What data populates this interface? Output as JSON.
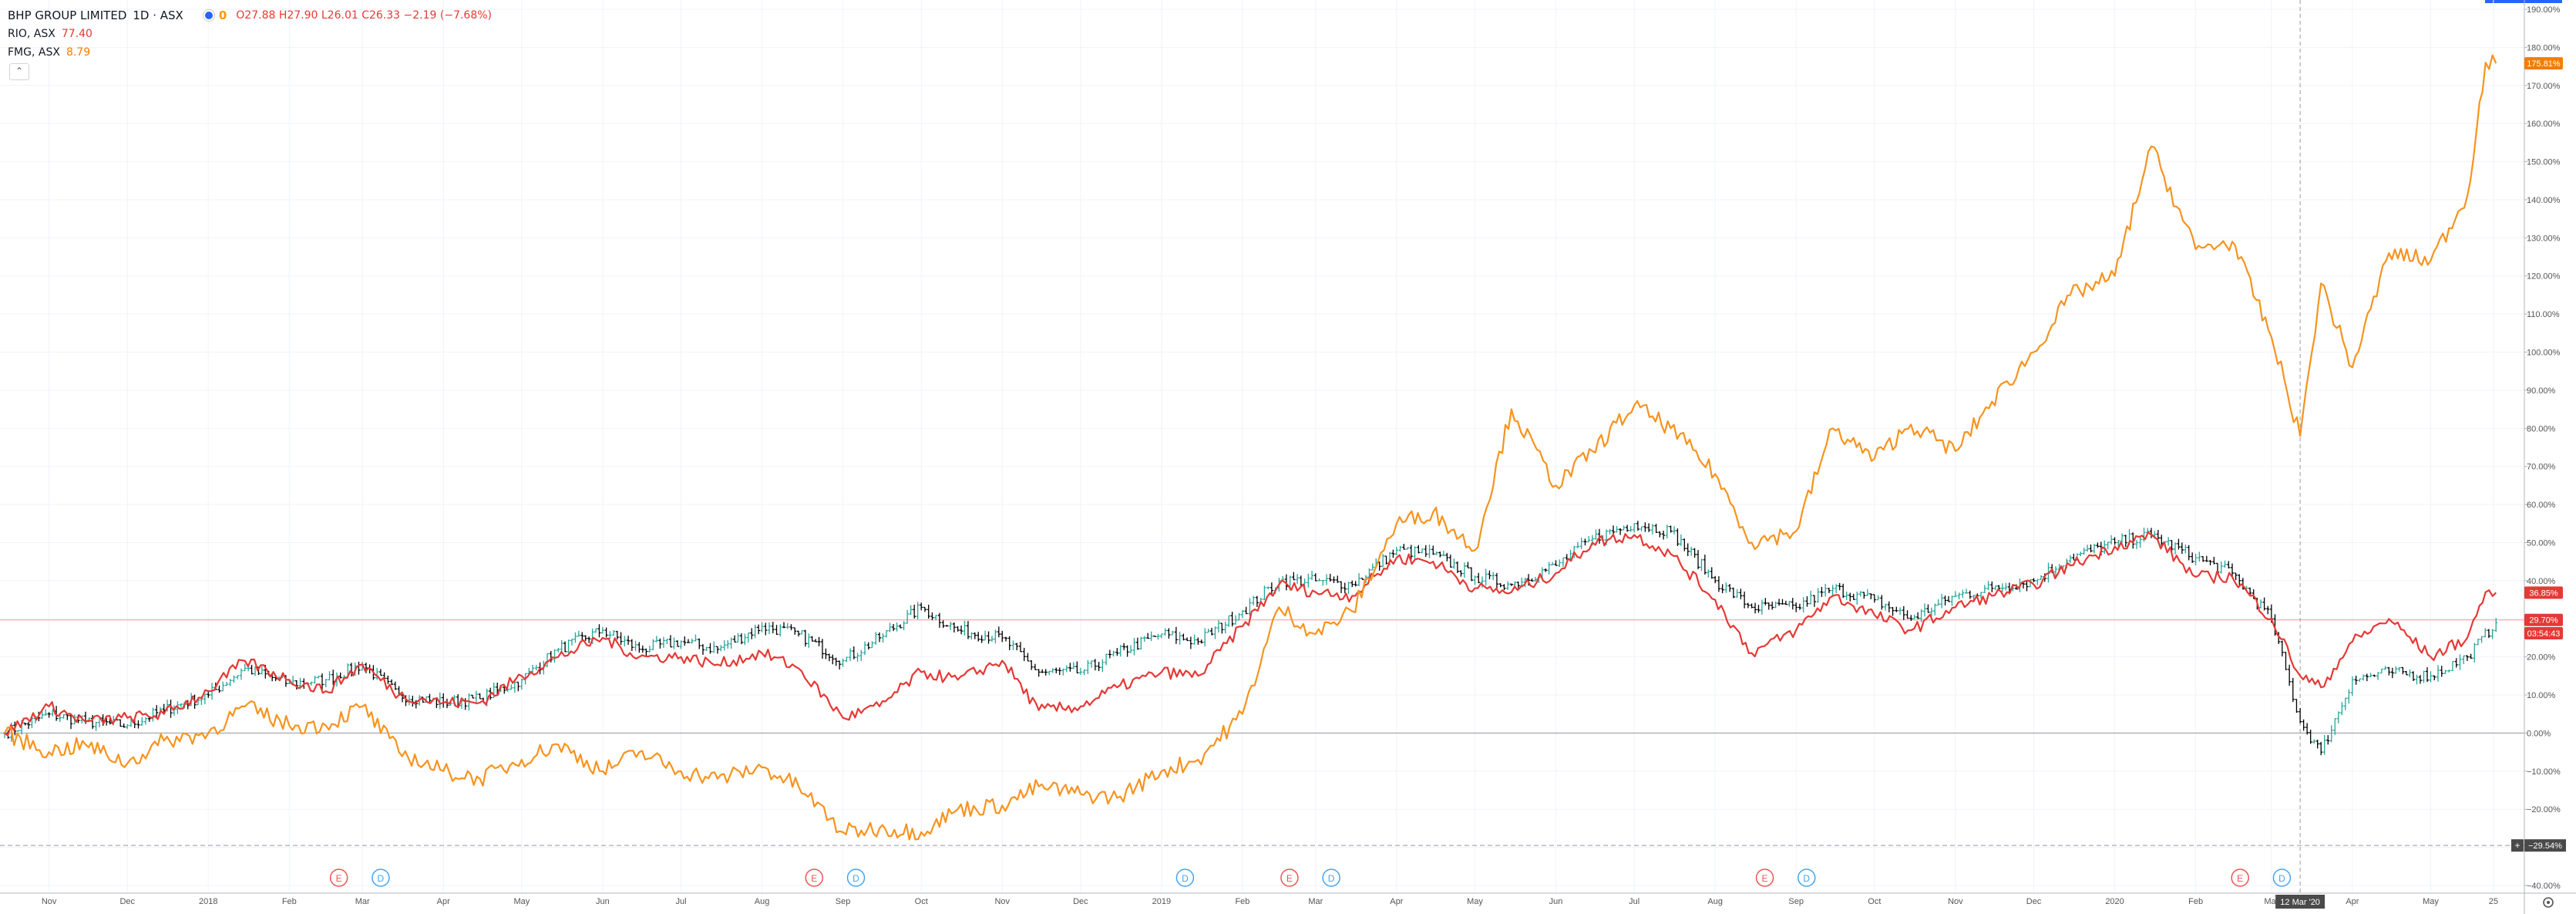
{
  "legend": {
    "main_symbol": "BHP GROUP LIMITED",
    "interval_exchange": "1D · ASX",
    "status_flag": "0",
    "ohlc": "O27.88 H27.90 L26.01 C26.33 −2.19 (−7.68%)",
    "compare": [
      {
        "name": "RIO, ASX",
        "value": "77.40",
        "color": "#e53935"
      },
      {
        "name": "FMG, ASX",
        "value": "8.79",
        "color": "#f57c00"
      }
    ],
    "collapse_glyph": "⌃"
  },
  "colors": {
    "bhp_up": "#26a69a",
    "bhp_down": "#000000",
    "rio_line": "#e53935",
    "fmg_line": "#f7931e",
    "grid": "#f0f3fa",
    "axis_text": "#555555"
  },
  "chart_data": {
    "type": "line",
    "percent_scale": true,
    "y_axis": {
      "min": -40,
      "max": 190,
      "ticks": [
        "190.00%",
        "180.00%",
        "170.00%",
        "160.00%",
        "150.00%",
        "140.00%",
        "130.00%",
        "120.00%",
        "110.00%",
        "100.00%",
        "90.00%",
        "80.00%",
        "70.00%",
        "60.00%",
        "50.00%",
        "40.00%",
        "30.00%",
        "20.00%",
        "10.00%",
        "0.00%",
        "−10.00%",
        "−20.00%",
        "−30.00%",
        "−40.00%"
      ]
    },
    "x_axis": {
      "range": [
        "2017-10-15",
        "2020-05-28"
      ],
      "ticks": [
        {
          "label": "Nov",
          "date": "2017-11-01"
        },
        {
          "label": "Dec",
          "date": "2017-12-01"
        },
        {
          "label": "2018",
          "date": "2018-01-01"
        },
        {
          "label": "Feb",
          "date": "2018-02-01"
        },
        {
          "label": "Mar",
          "date": "2018-03-01"
        },
        {
          "label": "Apr",
          "date": "2018-04-01"
        },
        {
          "label": "May",
          "date": "2018-05-01"
        },
        {
          "label": "Jun",
          "date": "2018-06-01"
        },
        {
          "label": "Jul",
          "date": "2018-07-01"
        },
        {
          "label": "Aug",
          "date": "2018-08-01"
        },
        {
          "label": "Sep",
          "date": "2018-09-01"
        },
        {
          "label": "Oct",
          "date": "2018-10-01"
        },
        {
          "label": "Nov",
          "date": "2018-11-01"
        },
        {
          "label": "Dec",
          "date": "2018-12-01"
        },
        {
          "label": "2019",
          "date": "2019-01-01"
        },
        {
          "label": "Feb",
          "date": "2019-02-01"
        },
        {
          "label": "Mar",
          "date": "2019-03-01"
        },
        {
          "label": "Apr",
          "date": "2019-04-01"
        },
        {
          "label": "May",
          "date": "2019-05-01"
        },
        {
          "label": "Jun",
          "date": "2019-06-01"
        },
        {
          "label": "Jul",
          "date": "2019-07-01"
        },
        {
          "label": "Aug",
          "date": "2019-08-01"
        },
        {
          "label": "Sep",
          "date": "2019-09-01"
        },
        {
          "label": "Oct",
          "date": "2019-10-01"
        },
        {
          "label": "Nov",
          "date": "2019-11-01"
        },
        {
          "label": "Dec",
          "date": "2019-12-01"
        },
        {
          "label": "2020",
          "date": "2020-01-01"
        },
        {
          "label": "Feb",
          "date": "2020-02-01"
        },
        {
          "label": "Mar",
          "date": "2020-03-01"
        },
        {
          "label": "Apr",
          "date": "2020-04-01"
        },
        {
          "label": "May",
          "date": "2020-05-01"
        },
        {
          "label": "25",
          "date": "2020-05-25"
        }
      ]
    },
    "crosshair": {
      "date": "2020-03-12",
      "label": "12 Mar '20"
    },
    "price_line": {
      "value": 29.7,
      "color": "#ef9a9a"
    },
    "low_line": {
      "value": -29.5,
      "label": "−29.54%"
    },
    "badges": [
      {
        "text": "175.81%",
        "value": 175.81,
        "color": "#f57c00"
      },
      {
        "text": "36.85%",
        "value": 36.85,
        "color": "#e53935"
      },
      {
        "text": "29.70%",
        "value": 29.7,
        "color": "#e53935"
      },
      {
        "text": "03:54:43",
        "value": 26.2,
        "color": "#e53935"
      }
    ],
    "events": [
      {
        "type": "E",
        "date": "2018-02-20"
      },
      {
        "type": "D",
        "date": "2018-03-08"
      },
      {
        "type": "E",
        "date": "2018-08-21"
      },
      {
        "type": "D",
        "date": "2018-09-06"
      },
      {
        "type": "D",
        "date": "2019-01-10"
      },
      {
        "type": "E",
        "date": "2019-02-19"
      },
      {
        "type": "D",
        "date": "2019-03-07"
      },
      {
        "type": "E",
        "date": "2019-08-20"
      },
      {
        "type": "D",
        "date": "2019-09-05"
      },
      {
        "type": "E",
        "date": "2020-02-18"
      },
      {
        "type": "D",
        "date": "2020-03-05"
      }
    ],
    "series": [
      {
        "name": "BHP GROUP LIMITED",
        "kind": "bars",
        "points": [
          [
            "2017-10-15",
            0
          ],
          [
            "2017-11-01",
            5
          ],
          [
            "2017-11-15",
            3
          ],
          [
            "2017-12-01",
            2
          ],
          [
            "2017-12-15",
            6
          ],
          [
            "2018-01-01",
            10
          ],
          [
            "2018-01-15",
            17
          ],
          [
            "2018-02-01",
            13
          ],
          [
            "2018-02-15",
            14
          ],
          [
            "2018-03-01",
            18
          ],
          [
            "2018-03-15",
            10
          ],
          [
            "2018-04-01",
            8
          ],
          [
            "2018-04-15",
            9
          ],
          [
            "2018-05-01",
            14
          ],
          [
            "2018-05-15",
            22
          ],
          [
            "2018-06-01",
            27
          ],
          [
            "2018-06-15",
            22
          ],
          [
            "2018-07-01",
            24
          ],
          [
            "2018-07-15",
            22
          ],
          [
            "2018-08-01",
            28
          ],
          [
            "2018-08-15",
            26
          ],
          [
            "2018-09-01",
            19
          ],
          [
            "2018-09-15",
            25
          ],
          [
            "2018-10-01",
            33
          ],
          [
            "2018-10-15",
            27
          ],
          [
            "2018-11-01",
            25
          ],
          [
            "2018-11-15",
            16
          ],
          [
            "2018-12-01",
            16
          ],
          [
            "2018-12-15",
            21
          ],
          [
            "2019-01-01",
            26
          ],
          [
            "2019-01-15",
            24
          ],
          [
            "2019-02-01",
            32
          ],
          [
            "2019-02-15",
            40
          ],
          [
            "2019-03-01",
            40
          ],
          [
            "2019-03-15",
            39
          ],
          [
            "2019-04-01",
            48
          ],
          [
            "2019-04-15",
            47
          ],
          [
            "2019-05-01",
            41
          ],
          [
            "2019-05-15",
            39
          ],
          [
            "2019-06-01",
            44
          ],
          [
            "2019-06-15",
            51
          ],
          [
            "2019-07-01",
            55
          ],
          [
            "2019-07-15",
            53
          ],
          [
            "2019-08-01",
            40
          ],
          [
            "2019-08-15",
            33
          ],
          [
            "2019-09-01",
            33
          ],
          [
            "2019-09-15",
            38
          ],
          [
            "2019-10-01",
            35
          ],
          [
            "2019-10-15",
            30
          ],
          [
            "2019-11-01",
            36
          ],
          [
            "2019-11-15",
            38
          ],
          [
            "2019-12-01",
            40
          ],
          [
            "2019-12-15",
            46
          ],
          [
            "2020-01-01",
            50
          ],
          [
            "2020-01-15",
            52
          ],
          [
            "2020-02-01",
            46
          ],
          [
            "2020-02-15",
            42
          ],
          [
            "2020-03-01",
            30
          ],
          [
            "2020-03-12",
            3
          ],
          [
            "2020-03-20",
            -5
          ],
          [
            "2020-04-01",
            14
          ],
          [
            "2020-04-15",
            16
          ],
          [
            "2020-05-01",
            15
          ],
          [
            "2020-05-15",
            20
          ],
          [
            "2020-05-26",
            29
          ]
        ]
      },
      {
        "name": "RIO, ASX",
        "kind": "line",
        "points": [
          [
            "2017-10-15",
            0
          ],
          [
            "2017-11-01",
            7
          ],
          [
            "2017-11-15",
            3
          ],
          [
            "2017-12-01",
            4
          ],
          [
            "2017-12-15",
            5
          ],
          [
            "2018-01-01",
            11
          ],
          [
            "2018-01-15",
            19
          ],
          [
            "2018-02-01",
            14
          ],
          [
            "2018-02-15",
            11
          ],
          [
            "2018-03-01",
            18
          ],
          [
            "2018-03-15",
            10
          ],
          [
            "2018-04-01",
            8
          ],
          [
            "2018-04-15",
            8
          ],
          [
            "2018-05-01",
            15
          ],
          [
            "2018-05-15",
            20
          ],
          [
            "2018-06-01",
            25
          ],
          [
            "2018-06-15",
            20
          ],
          [
            "2018-07-01",
            20
          ],
          [
            "2018-07-15",
            18
          ],
          [
            "2018-08-01",
            21
          ],
          [
            "2018-08-15",
            17
          ],
          [
            "2018-09-01",
            4
          ],
          [
            "2018-09-15",
            7
          ],
          [
            "2018-10-01",
            16
          ],
          [
            "2018-10-15",
            14
          ],
          [
            "2018-11-01",
            19
          ],
          [
            "2018-11-15",
            6
          ],
          [
            "2018-12-01",
            7
          ],
          [
            "2018-12-15",
            12
          ],
          [
            "2019-01-01",
            16
          ],
          [
            "2019-01-15",
            15
          ],
          [
            "2019-02-01",
            28
          ],
          [
            "2019-02-15",
            39
          ],
          [
            "2019-03-01",
            37
          ],
          [
            "2019-03-15",
            36
          ],
          [
            "2019-04-01",
            46
          ],
          [
            "2019-04-15",
            45
          ],
          [
            "2019-05-01",
            38
          ],
          [
            "2019-05-15",
            37
          ],
          [
            "2019-06-01",
            42
          ],
          [
            "2019-06-15",
            50
          ],
          [
            "2019-07-01",
            52
          ],
          [
            "2019-07-15",
            47
          ],
          [
            "2019-08-01",
            35
          ],
          [
            "2019-08-15",
            21
          ],
          [
            "2019-09-01",
            27
          ],
          [
            "2019-09-15",
            36
          ],
          [
            "2019-10-01",
            31
          ],
          [
            "2019-10-15",
            27
          ],
          [
            "2019-11-01",
            33
          ],
          [
            "2019-11-15",
            36
          ],
          [
            "2019-12-01",
            39
          ],
          [
            "2019-12-15",
            44
          ],
          [
            "2020-01-01",
            49
          ],
          [
            "2020-01-15",
            52
          ],
          [
            "2020-02-01",
            41
          ],
          [
            "2020-02-15",
            41
          ],
          [
            "2020-03-01",
            30
          ],
          [
            "2020-03-12",
            15
          ],
          [
            "2020-03-20",
            12
          ],
          [
            "2020-04-01",
            24
          ],
          [
            "2020-04-15",
            30
          ],
          [
            "2020-05-01",
            20
          ],
          [
            "2020-05-15",
            25
          ],
          [
            "2020-05-22",
            37
          ],
          [
            "2020-05-26",
            36.85
          ]
        ]
      },
      {
        "name": "FMG, ASX",
        "kind": "line",
        "points": [
          [
            "2017-10-15",
            0
          ],
          [
            "2017-11-01",
            -5
          ],
          [
            "2017-11-15",
            -3
          ],
          [
            "2017-12-01",
            -8
          ],
          [
            "2017-12-15",
            -2
          ],
          [
            "2018-01-01",
            0
          ],
          [
            "2018-01-15",
            7
          ],
          [
            "2018-02-01",
            2
          ],
          [
            "2018-02-15",
            2
          ],
          [
            "2018-03-01",
            7
          ],
          [
            "2018-03-15",
            -5
          ],
          [
            "2018-04-01",
            -10
          ],
          [
            "2018-04-15",
            -12
          ],
          [
            "2018-05-01",
            -7
          ],
          [
            "2018-05-15",
            -3
          ],
          [
            "2018-06-01",
            -10
          ],
          [
            "2018-06-15",
            -5
          ],
          [
            "2018-07-01",
            -10
          ],
          [
            "2018-07-15",
            -12
          ],
          [
            "2018-08-01",
            -9
          ],
          [
            "2018-08-15",
            -14
          ],
          [
            "2018-09-01",
            -26
          ],
          [
            "2018-09-15",
            -25
          ],
          [
            "2018-10-01",
            -26
          ],
          [
            "2018-10-15",
            -20
          ],
          [
            "2018-11-01",
            -19
          ],
          [
            "2018-11-15",
            -14
          ],
          [
            "2018-12-01",
            -16
          ],
          [
            "2018-12-15",
            -17
          ],
          [
            "2019-01-01",
            -10
          ],
          [
            "2019-01-15",
            -7
          ],
          [
            "2019-02-01",
            5
          ],
          [
            "2019-02-15",
            33
          ],
          [
            "2019-03-01",
            26
          ],
          [
            "2019-03-15",
            32
          ],
          [
            "2019-04-01",
            55
          ],
          [
            "2019-04-15",
            58
          ],
          [
            "2019-05-01",
            48
          ],
          [
            "2019-05-15",
            85
          ],
          [
            "2019-06-01",
            65
          ],
          [
            "2019-06-15",
            74
          ],
          [
            "2019-07-01",
            86
          ],
          [
            "2019-07-15",
            80
          ],
          [
            "2019-08-01",
            68
          ],
          [
            "2019-08-15",
            50
          ],
          [
            "2019-09-01",
            53
          ],
          [
            "2019-09-15",
            80
          ],
          [
            "2019-10-01",
            72
          ],
          [
            "2019-10-15",
            81
          ],
          [
            "2019-11-01",
            74
          ],
          [
            "2019-11-15",
            87
          ],
          [
            "2019-12-01",
            100
          ],
          [
            "2019-12-15",
            115
          ],
          [
            "2020-01-01",
            120
          ],
          [
            "2020-01-15",
            154
          ],
          [
            "2020-02-01",
            127
          ],
          [
            "2020-02-15",
            129
          ],
          [
            "2020-03-01",
            104
          ],
          [
            "2020-03-12",
            78
          ],
          [
            "2020-03-20",
            118
          ],
          [
            "2020-04-01",
            96
          ],
          [
            "2020-04-15",
            126
          ],
          [
            "2020-05-01",
            124
          ],
          [
            "2020-05-15",
            141
          ],
          [
            "2020-05-22",
            176
          ],
          [
            "2020-05-26",
            175.81
          ]
        ]
      }
    ]
  }
}
